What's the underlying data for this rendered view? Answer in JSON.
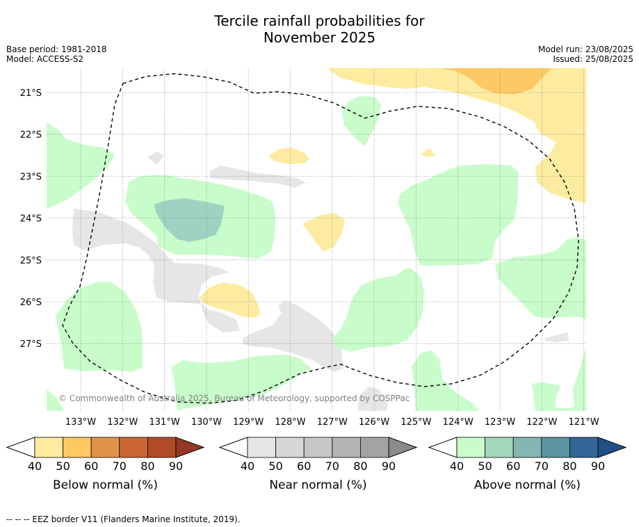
{
  "title": {
    "line1": "Tercile rainfall probabilities for",
    "line2": "November 2025"
  },
  "meta": {
    "base_period": "Base period: 1981-2018",
    "model": "Model: ACCESS-S2",
    "model_run": "Model run: 23/08/2025",
    "issued": "Issued: 25/08/2025"
  },
  "map": {
    "lat_labels": [
      "21°S",
      "22°S",
      "23°S",
      "24°S",
      "25°S",
      "26°S",
      "27°S"
    ],
    "lon_labels": [
      "133°W",
      "132°W",
      "131°W",
      "130°W",
      "129°W",
      "128°W",
      "127°W",
      "126°W",
      "125°W",
      "124°W",
      "123°W",
      "122°W",
      "121°W"
    ],
    "lon_range": [
      -133.8,
      -120.9
    ],
    "lat_range": [
      -28.6,
      -20.4
    ],
    "copyright": "© Commonwealth of Australia 2025, Bureau of Meteorology, supported by COSPPac",
    "grid": true,
    "colors": {
      "below_40": "#fdeca0",
      "below_50": "#fdc964",
      "near_40": "#e6e6e6",
      "above_40": "#c9fccb",
      "above_50": "#9fd2c0",
      "eez": "#000000"
    }
  },
  "colorbars": [
    {
      "label": "Below normal (%)",
      "ticks": [
        "40",
        "50",
        "60",
        "70",
        "80",
        "90"
      ],
      "colors": [
        "#fdeca0",
        "#fdc964",
        "#e2934a",
        "#cb6633",
        "#b04a28",
        "#943823"
      ]
    },
    {
      "label": "Near normal (%)",
      "ticks": [
        "40",
        "50",
        "60",
        "70",
        "80",
        "90"
      ],
      "colors": [
        "#e6e6e6",
        "#d6d6d6",
        "#c6c6c6",
        "#b4b4b4",
        "#a3a3a3",
        "#8b8b8b"
      ]
    },
    {
      "label": "Above normal (%)",
      "ticks": [
        "40",
        "50",
        "60",
        "70",
        "80",
        "90"
      ],
      "colors": [
        "#c9fccb",
        "#a5d7bb",
        "#84b6b2",
        "#5c93a0",
        "#336596",
        "#1f4f84"
      ]
    }
  ],
  "footnote": "--  --  -- EEZ border V11 (Flanders Marine Institute, 2019)."
}
